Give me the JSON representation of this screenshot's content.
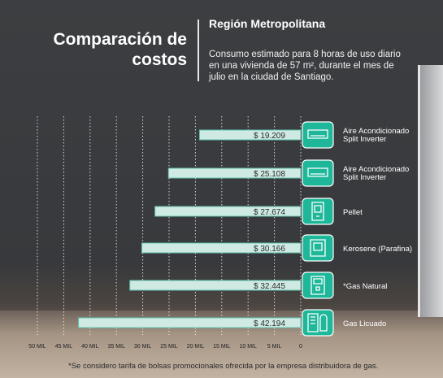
{
  "header": {
    "title": "Comparación de costos",
    "region": "Región Metropolitana",
    "description": "Consumo estimado para 8 horas de uso diario en una vivienda de 57 m², durante el mes de julio en la ciudad de Santiago."
  },
  "footnote": "*Se considero tarifa de bolsas promocionales ofrecida por la empresa distribuidora de gas.",
  "colors": {
    "bar": "#cfe9e3",
    "bar_border": "#62c3b0",
    "icon_bg": "#1fb79a",
    "text": "#ffffff",
    "value_text": "#2b2b2b"
  },
  "chart_data": {
    "type": "bar",
    "orientation": "horizontal",
    "x_reversed": true,
    "categories": [
      "Aire Acondicionado Split Inverter",
      "Aire Acondicionado Split Inverter",
      "Pellet",
      "Kerosene (Parafina)",
      "*Gas Natural",
      "Gas Licuado"
    ],
    "values": [
      19209,
      25108,
      27674,
      30166,
      32445,
      42194
    ],
    "value_labels": [
      "$ 19.209",
      "$ 25.108",
      "$ 27.674",
      "$ 30.166",
      "$ 32.445",
      "$ 42.194"
    ],
    "icons": [
      "air-conditioner-icon",
      "air-conditioner-icon",
      "pellet-stove-icon",
      "kerosene-heater-icon",
      "gas-heater-icon",
      "gas-cylinder-icon"
    ],
    "xlim": [
      0,
      50000
    ],
    "ticks": [
      50000,
      45000,
      40000,
      35000,
      30000,
      25000,
      20000,
      15000,
      10000,
      5000,
      0
    ],
    "tick_labels": [
      "50 MIL",
      "45 MIL",
      "40 MIL",
      "35 MIL",
      "30 MIL",
      "25 MIL",
      "20 MIL",
      "15 MIL",
      "10 MIL",
      "5 MIL",
      "0"
    ],
    "grid": true
  }
}
